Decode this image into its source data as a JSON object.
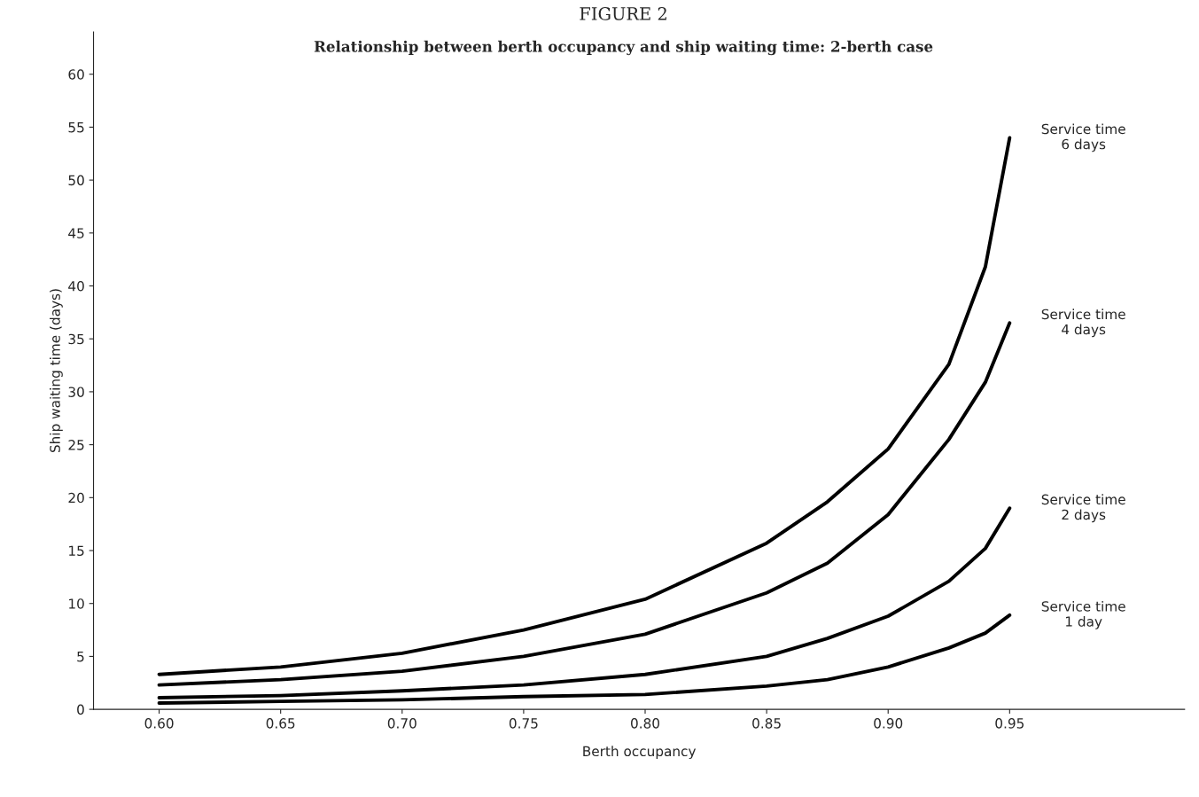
{
  "chart_data": {
    "type": "line",
    "title": "FIGURE 2",
    "subtitle": "Relationship between berth occupancy and ship waiting time: 2-berth case",
    "xlabel": "Berth occupancy",
    "ylabel": "Ship waiting time (days)",
    "x": [
      0.6,
      0.65,
      0.7,
      0.75,
      0.8,
      0.85,
      0.875,
      0.9,
      0.925,
      0.94,
      0.95
    ],
    "series": [
      {
        "name": "Service time\n6 days",
        "color": "#000000",
        "values": [
          3.3,
          4.0,
          5.3,
          7.5,
          10.4,
          15.7,
          19.6,
          24.6,
          32.6,
          41.8,
          54
        ]
      },
      {
        "name": "Service time\n4 days",
        "color": "#000000",
        "values": [
          2.3,
          2.8,
          3.6,
          5.0,
          7.1,
          11.0,
          13.8,
          18.4,
          25.5,
          30.9,
          36.5
        ]
      },
      {
        "name": "Service time\n2 days",
        "color": "#000000",
        "values": [
          1.1,
          1.3,
          1.75,
          2.3,
          3.3,
          5.0,
          6.7,
          8.8,
          12.1,
          15.2,
          19.0
        ]
      },
      {
        "name": "Service time\n1 day",
        "color": "#000000",
        "values": [
          0.6,
          0.75,
          0.9,
          1.2,
          1.4,
          2.2,
          2.8,
          4.0,
          5.8,
          7.2,
          8.9
        ]
      }
    ],
    "xlim": [
      0.573,
      1.022
    ],
    "ylim": [
      0,
      64
    ],
    "xticks": [
      {
        "value": 0.6,
        "label": "0.60"
      },
      {
        "value": 0.65,
        "label": "0.65"
      },
      {
        "value": 0.7,
        "label": "0.70"
      },
      {
        "value": 0.75,
        "label": "0.75"
      },
      {
        "value": 0.8,
        "label": "0.80"
      },
      {
        "value": 0.85,
        "label": "0.85"
      },
      {
        "value": 0.9,
        "label": "0.90"
      },
      {
        "value": 0.95,
        "label": "0.95"
      }
    ],
    "yticks": [
      0,
      5,
      10,
      15,
      20,
      25,
      30,
      35,
      40,
      45,
      50,
      55,
      60
    ],
    "grid": false,
    "legend": false,
    "marker": "none",
    "line_style": "solid"
  }
}
